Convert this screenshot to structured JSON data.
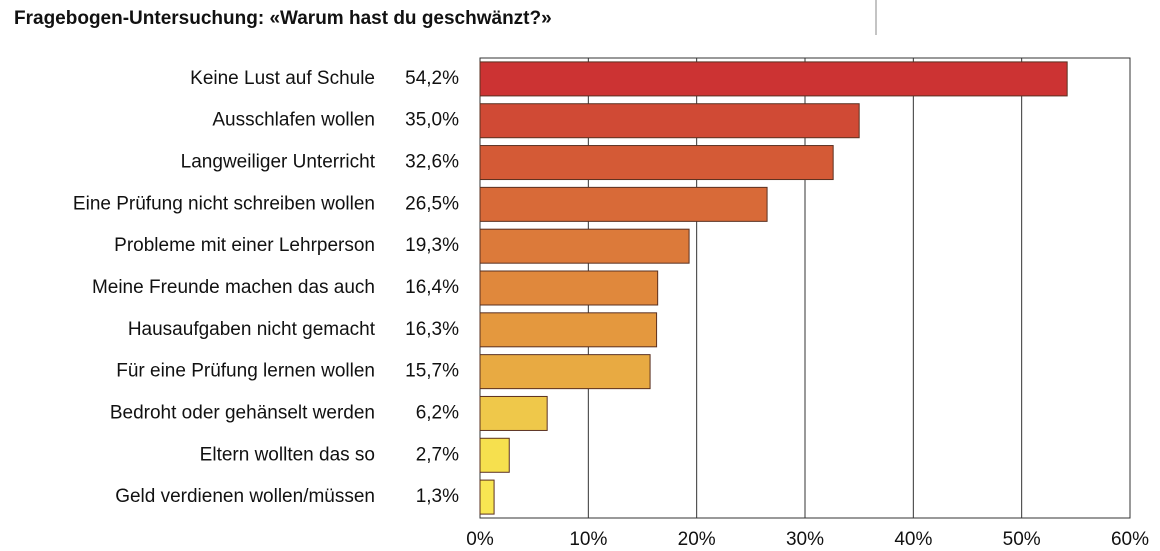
{
  "chart_data": {
    "type": "bar",
    "orientation": "horizontal",
    "title": "Fragebogen-Untersuchung: «Warum hast du geschwänzt?»",
    "categories": [
      "Keine Lust auf Schule",
      "Ausschlafen wollen",
      "Langweiliger Unterricht",
      "Eine Prüfung nicht schreiben wollen",
      "Probleme mit einer Lehrperson",
      "Meine Freunde machen das auch",
      "Hausaufgaben nicht gemacht",
      "Für eine Prüfung lernen wollen",
      "Bedroht oder gehänselt werden",
      "Eltern wollten das so",
      "Geld verdienen wollen/müssen"
    ],
    "values": [
      54.2,
      35.0,
      32.6,
      26.5,
      19.3,
      16.4,
      16.3,
      15.7,
      6.2,
      2.7,
      1.3
    ],
    "value_labels": [
      "54,2%",
      "35,0%",
      "32,6%",
      "26,5%",
      "19,3%",
      "16,4%",
      "16,3%",
      "15,7%",
      "6,2%",
      "2,7%",
      "1,3%"
    ],
    "colors": [
      "#cc3333",
      "#d04a35",
      "#d45a36",
      "#d86a38",
      "#dc7a3a",
      "#e0883c",
      "#e4983e",
      "#e8aa42",
      "#efc84a",
      "#f6e04e",
      "#f8e652"
    ],
    "xlim": [
      0,
      60
    ],
    "xticks": [
      {
        "value": 0,
        "label": "0%"
      },
      {
        "value": 10,
        "label": "10%"
      },
      {
        "value": 20,
        "label": "20%"
      },
      {
        "value": 30,
        "label": "30%"
      },
      {
        "value": 40,
        "label": "40%"
      },
      {
        "value": 50,
        "label": "50%"
      },
      {
        "value": 60,
        "label": "60%"
      }
    ],
    "grid": true
  }
}
